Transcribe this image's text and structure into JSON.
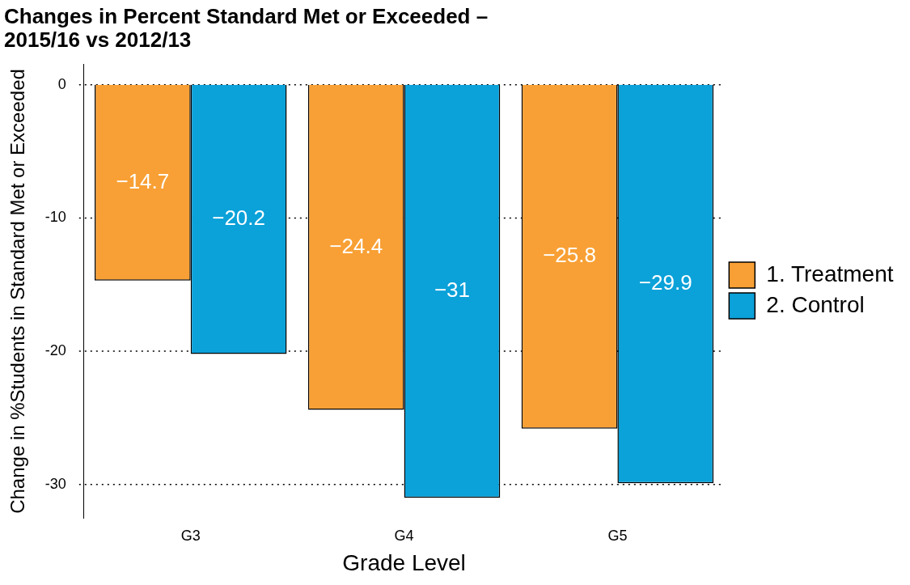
{
  "chart_data": {
    "type": "bar",
    "title": "Changes in Percent Standard Met or Exceeded –\n2015/16 vs 2012/13",
    "xlabel": "Grade Level",
    "ylabel": "Change in %Students in Standard Met or Exceeded",
    "categories": [
      "G3",
      "G4",
      "G5"
    ],
    "series": [
      {
        "name": "1. Treatment",
        "color": "#f8a035",
        "values": [
          -14.7,
          -24.4,
          -25.8
        ],
        "value_labels": [
          "−14.7",
          "−24.4",
          "−25.8"
        ]
      },
      {
        "name": "2. Control",
        "color": "#0ba1d9",
        "values": [
          -20.2,
          -31,
          -29.9
        ],
        "value_labels": [
          "−20.2",
          "−31",
          "−29.9"
        ]
      }
    ],
    "ylim": [
      -32.55,
      1.55
    ],
    "yticks": [
      {
        "value": -30,
        "label": "-30"
      },
      {
        "value": -20,
        "label": "-20"
      },
      {
        "value": -10,
        "label": "-10"
      },
      0
    ],
    "grid": "y",
    "legend": "right"
  }
}
